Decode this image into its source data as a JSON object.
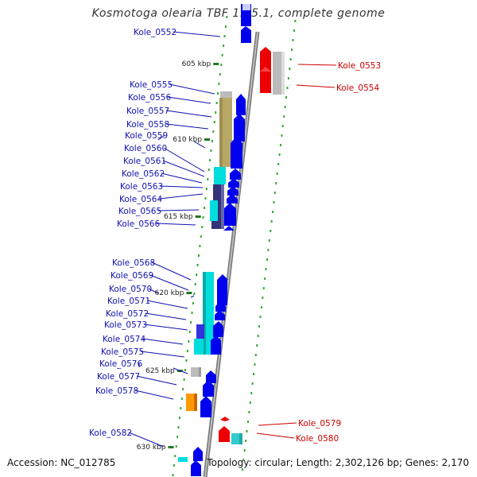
{
  "title": "Kosmotoga olearia TBF 19.5.1, complete genome",
  "footer": {
    "accession": "Accession: NC_012785",
    "summary": "Topology: circular; Length: 2,302,126 bp; Genes: 2,170"
  },
  "colors": {
    "left_label": "#1010b0",
    "right_label": "#cc0000",
    "forward_gene": "#0000ee",
    "reverse_gene": "#ee0000",
    "pseudo_gene": "#bbbbbb",
    "cyan_gene": "#00dddd",
    "olive_gene": "#b8a865",
    "navy_gene": "#333377",
    "orange_gene": "#ff9900",
    "tick": "#227722",
    "backbone": "#888888"
  },
  "kbp_labels": [
    "605 kbp",
    "610 kbp",
    "615 kbp",
    "620 kbp",
    "625 kbp",
    "630 kbp"
  ],
  "left_genes": [
    "Kole_0552",
    "Kole_0555",
    "Kole_0556",
    "Kole_0557",
    "Kole_0558",
    "Kole_0559",
    "Kole_0560",
    "Kole_0561",
    "Kole_0562",
    "Kole_0563",
    "Kole_0564",
    "Kole_0565",
    "Kole_0566",
    "Kole_0568",
    "Kole_0569",
    "Kole_0570",
    "Kole_0571",
    "Kole_0572",
    "Kole_0573",
    "Kole_0574",
    "Kole_0575",
    "Kole_0576",
    "Kole_0577",
    "Kole_0578",
    "Kole_0582"
  ],
  "right_genes": [
    "Kole_0553",
    "Kole_0554",
    "Kole_0579",
    "Kole_0580"
  ]
}
